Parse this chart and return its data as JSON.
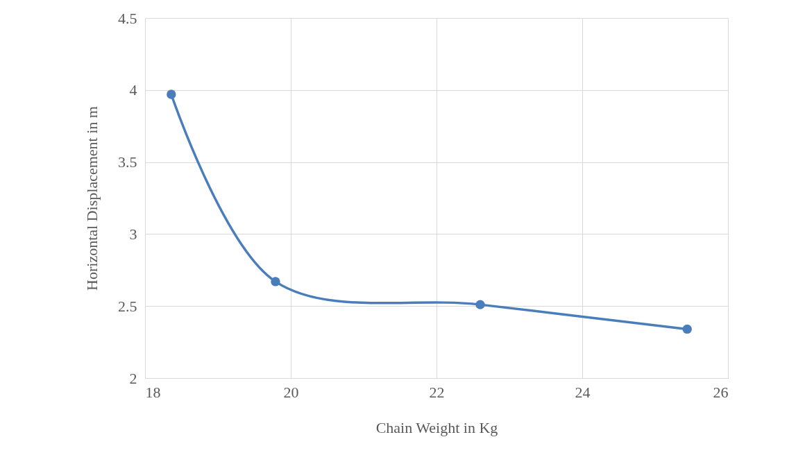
{
  "chart_data": {
    "type": "line",
    "xlabel": "Chain Weight in Kg",
    "ylabel": "Horizontal  Displacement in m",
    "x": [
      18.36,
      19.79,
      22.6,
      25.44
    ],
    "series": [
      {
        "color": "#4a7ebb",
        "values": [
          3.97,
          2.67,
          2.51,
          2.34
        ]
      }
    ],
    "xlim": [
      18,
      26
    ],
    "xticks": [
      18,
      20,
      22,
      24,
      26
    ],
    "ylim": [
      2,
      4.5
    ],
    "yticks": [
      2,
      2.5,
      3,
      3.5,
      4,
      4.5
    ],
    "grid": true,
    "marker": "circle",
    "line_style": "solid"
  }
}
